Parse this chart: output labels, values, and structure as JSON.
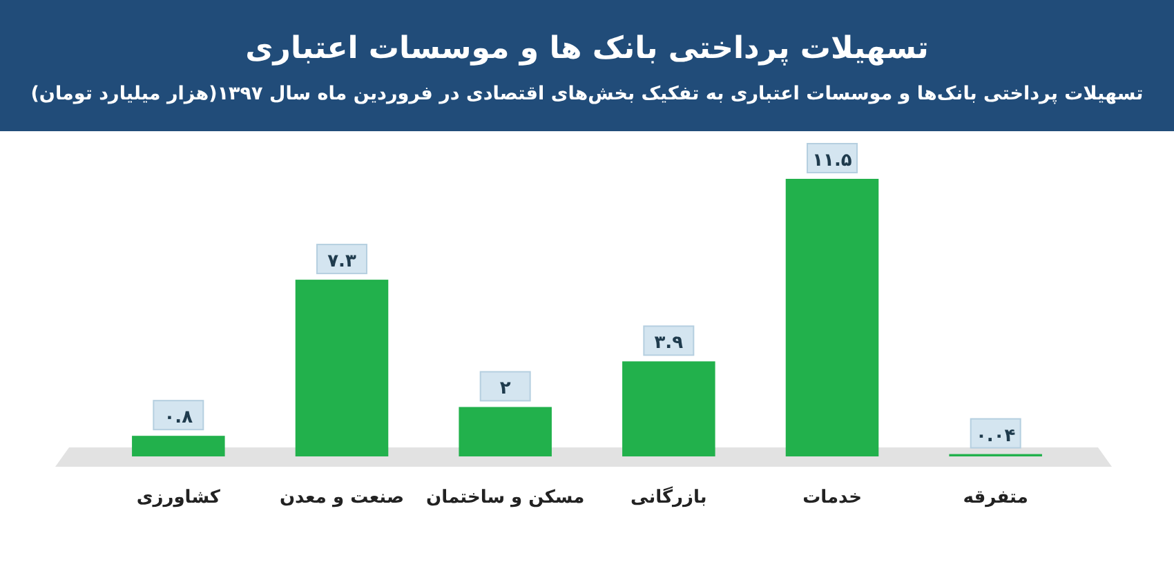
{
  "chart_data": {
    "type": "bar",
    "title": "تسهیلات پرداختی بانک ها و موسسات اعتباری",
    "subtitle": "تسهیلات پرداختی بانک‌ها و موسسات اعتباری به تفکیک بخش‌های اقتصادی در فروردین ماه سال ۱۳۹۷(هزار میلیارد تومان)",
    "categories": [
      "کشاورزی",
      "صنعت و معدن",
      "مسکن و ساختمان",
      "بازرگانی",
      "خدمات",
      "متفرقه"
    ],
    "values": [
      0.8,
      7.3,
      2,
      3.9,
      11.5,
      0.04
    ],
    "value_labels": [
      "۰.۸",
      "۷.۳",
      "۲",
      "۳.۹",
      "۱۱.۵",
      "۰.۰۴"
    ],
    "color": "#22b14c"
  }
}
